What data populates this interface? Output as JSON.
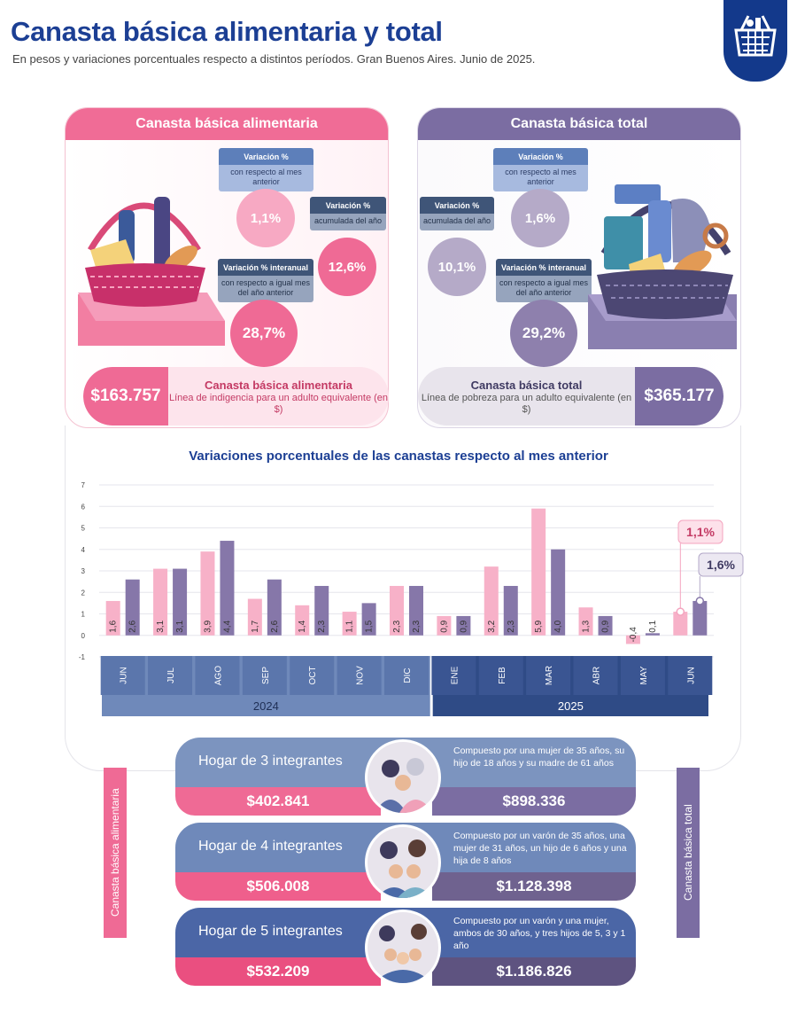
{
  "header": {
    "title": "Canasta básica alimentaria y total",
    "subtitle": "En pesos y variaciones porcentuales respecto a distintos períodos. Gran Buenos Aires. Junio de 2025."
  },
  "cba": {
    "title": "Canasta básica alimentaria",
    "monthly": {
      "label": "Variación %",
      "desc": "con respecto al mes anterior",
      "value": "1,1%"
    },
    "ytd": {
      "label": "Variación %",
      "desc": "acumulada del año",
      "value": "12,6%"
    },
    "yoy": {
      "label": "Variación % interanual",
      "desc": "con respecto a igual mes del año anterior",
      "value": "28,7%"
    },
    "price": "$163.757",
    "price_title": "Canasta básica alimentaria",
    "price_desc": "Línea de indigencia para un adulto equivalente (en $)"
  },
  "cbt": {
    "title": "Canasta básica total",
    "monthly": {
      "label": "Variación %",
      "desc": "con respecto al mes anterior",
      "value": "1,6%"
    },
    "ytd": {
      "label": "Variación %",
      "desc": "acumulada del año",
      "value": "10,1%"
    },
    "yoy": {
      "label": "Variación % interanual",
      "desc": "con respecto a igual mes del año anterior",
      "value": "29,2%"
    },
    "price": "$365.177",
    "price_title": "Canasta básica total",
    "price_desc": "Línea de pobreza para un adulto equivalente (en $)"
  },
  "chart_data": {
    "type": "bar",
    "title": "Variaciones porcentuales de las canastas respecto al mes anterior",
    "categories": [
      "JUN",
      "JUL",
      "AGO",
      "SEP",
      "OCT",
      "NOV",
      "DIC",
      "ENE",
      "FEB",
      "MAR",
      "ABR",
      "MAY",
      "JUN"
    ],
    "years": [
      {
        "label": "2024",
        "from": 0,
        "to": 6
      },
      {
        "label": "2025",
        "from": 7,
        "to": 12
      }
    ],
    "series": [
      {
        "values": [
          1.6,
          3.1,
          3.9,
          1.7,
          1.4,
          1.1,
          2.3,
          0.9,
          3.2,
          5.9,
          1.3,
          -0.4,
          1.1
        ],
        "labels": [
          "1,6",
          "3,1",
          "3,9",
          "1,7",
          "1,4",
          "1,1",
          "2,3",
          "0,9",
          "3,2",
          "5,9",
          "1,3",
          "-0,4",
          ""
        ],
        "color": "#f7b1c8"
      },
      {
        "values": [
          2.6,
          3.1,
          4.4,
          2.6,
          2.3,
          1.5,
          2.3,
          0.9,
          2.3,
          4.0,
          0.9,
          0.1,
          1.6
        ],
        "labels": [
          "2,6",
          "3,1",
          "4,4",
          "2,6",
          "2,3",
          "1,5",
          "2,3",
          "0,9",
          "2,3",
          "4,0",
          "0,9",
          "0,1",
          ""
        ],
        "color": "#8677a9"
      }
    ],
    "callouts": [
      {
        "series": 0,
        "text": "1,1%"
      },
      {
        "series": 1,
        "text": "1,6%"
      }
    ],
    "yticks": [
      "7",
      "6",
      "5",
      "4",
      "3",
      "2",
      "1",
      "0",
      "-1"
    ],
    "ylim": [
      -1,
      7
    ],
    "grid": true
  },
  "households": {
    "side_left": "Canasta básica alimentaria",
    "side_right": "Canasta básica total",
    "items": [
      {
        "name": "Hogar de 3 integrantes",
        "desc": "Compuesto por una mujer de 35 años, su hijo de 18 años y su madre de 61 años",
        "cba": "$402.841",
        "cbt": "$898.336"
      },
      {
        "name": "Hogar de 4 integrantes",
        "desc": "Compuesto por un varón de 35 años, una mujer de 31 años, un hijo de 6 años y una hija de 8 años",
        "cba": "$506.008",
        "cbt": "$1.128.398"
      },
      {
        "name": "Hogar de 5 integrantes",
        "desc": "Compuesto por un varón y una mujer, ambos de 30 años, y tres hijos de 5, 3 y 1 año",
        "cba": "$532.209",
        "cbt": "$1.186.826"
      }
    ]
  }
}
